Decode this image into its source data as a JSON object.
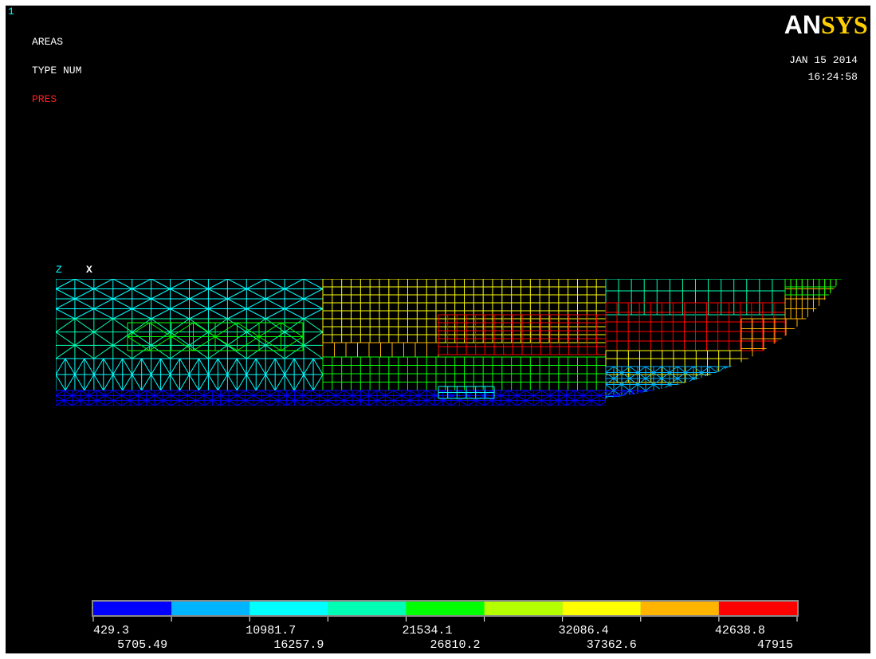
{
  "window_number": "1",
  "labels": [
    "AREAS",
    "TYPE NUM"
  ],
  "load_label": "PRES",
  "logo": {
    "left": "AN",
    "right": "SYS"
  },
  "date": "JAN 15 2014",
  "time": "16:24:58",
  "triad": {
    "z": "Z",
    "x": "X"
  },
  "legend": {
    "colors": [
      "#0000ff",
      "#00b4ff",
      "#00ffff",
      "#00ffb4",
      "#00ff00",
      "#b4ff00",
      "#ffff00",
      "#ffb400",
      "#ff0000"
    ],
    "values": [
      429.3,
      5705.49,
      10981.7,
      16257.9,
      21534.1,
      26810.2,
      32086.4,
      37362.6,
      42638.8,
      47915
    ]
  }
}
